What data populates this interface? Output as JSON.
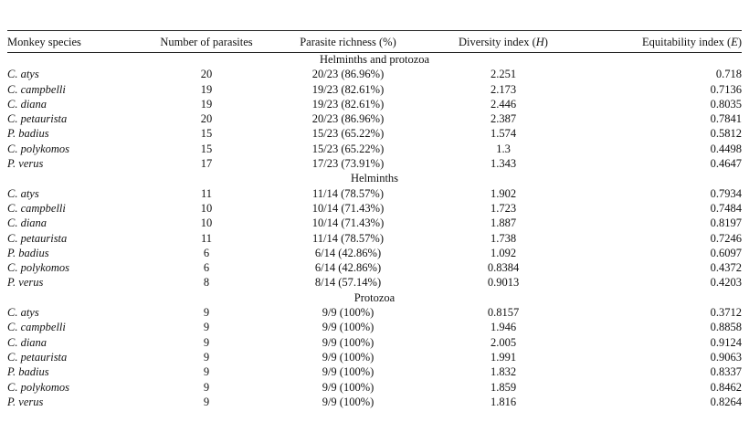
{
  "headers": {
    "species": "Monkey species",
    "num": "Number of parasites",
    "rich": "Parasite richness (%)",
    "div_pre": "Diversity index (",
    "div_sym": "H",
    "div_post": ")",
    "eq_pre": "Equitability index (",
    "eq_sym": "E",
    "eq_post": ")"
  },
  "groups": [
    {
      "title": "Helminths and protozoa",
      "rows": [
        {
          "species": "C. atys",
          "num": "20",
          "rich": "20/23 (86.96%)",
          "div": "2.251",
          "eq": "0.718"
        },
        {
          "species": "C. campbelli",
          "num": "19",
          "rich": "19/23 (82.61%)",
          "div": "2.173",
          "eq": "0.7136"
        },
        {
          "species": "C. diana",
          "num": "19",
          "rich": "19/23 (82.61%)",
          "div": "2.446",
          "eq": "0.8035"
        },
        {
          "species": "C. petaurista",
          "num": "20",
          "rich": "20/23 (86.96%)",
          "div": "2.387",
          "eq": "0.7841"
        },
        {
          "species": "P. badius",
          "num": "15",
          "rich": "15/23 (65.22%)",
          "div": "1.574",
          "eq": "0.5812"
        },
        {
          "species": "C. polykomos",
          "num": "15",
          "rich": "15/23 (65.22%)",
          "div": "1.3",
          "eq": "0.4498"
        },
        {
          "species": "P. verus",
          "num": "17",
          "rich": "17/23 (73.91%)",
          "div": "1.343",
          "eq": "0.4647"
        }
      ]
    },
    {
      "title": "Helminths",
      "rows": [
        {
          "species": "C. atys",
          "num": "11",
          "rich": "11/14 (78.57%)",
          "div": "1.902",
          "eq": "0.7934"
        },
        {
          "species": "C. campbelli",
          "num": "10",
          "rich": "10/14 (71.43%)",
          "div": "1.723",
          "eq": "0.7484"
        },
        {
          "species": "C. diana",
          "num": "10",
          "rich": "10/14 (71.43%)",
          "div": "1.887",
          "eq": "0.8197"
        },
        {
          "species": "C. petaurista",
          "num": "11",
          "rich": "11/14 (78.57%)",
          "div": "1.738",
          "eq": "0.7246"
        },
        {
          "species": "P. badius",
          "num": "6",
          "rich": "6/14 (42.86%)",
          "div": "1.092",
          "eq": "0.6097"
        },
        {
          "species": "C. polykomos",
          "num": "6",
          "rich": "6/14 (42.86%)",
          "div": "0.8384",
          "eq": "0.4372"
        },
        {
          "species": "P. verus",
          "num": "8",
          "rich": "8/14 (57.14%)",
          "div": "0.9013",
          "eq": "0.4203"
        }
      ]
    },
    {
      "title": "Protozoa",
      "rows": [
        {
          "species": "C. atys",
          "num": "9",
          "rich": "9/9 (100%)",
          "div": "0.8157",
          "eq": "0.3712"
        },
        {
          "species": "C. campbelli",
          "num": "9",
          "rich": "9/9 (100%)",
          "div": "1.946",
          "eq": "0.8858"
        },
        {
          "species": "C. diana",
          "num": "9",
          "rich": "9/9 (100%)",
          "div": "2.005",
          "eq": "0.9124"
        },
        {
          "species": "C. petaurista",
          "num": "9",
          "rich": "9/9 (100%)",
          "div": "1.991",
          "eq": "0.9063"
        },
        {
          "species": "P. badius",
          "num": "9",
          "rich": "9/9 (100%)",
          "div": "1.832",
          "eq": "0.8337"
        },
        {
          "species": "C. polykomos",
          "num": "9",
          "rich": "9/9 (100%)",
          "div": "1.859",
          "eq": "0.8462"
        },
        {
          "species": "P. verus",
          "num": "9",
          "rich": "9/9 (100%)",
          "div": "1.816",
          "eq": "0.8264"
        }
      ]
    }
  ]
}
